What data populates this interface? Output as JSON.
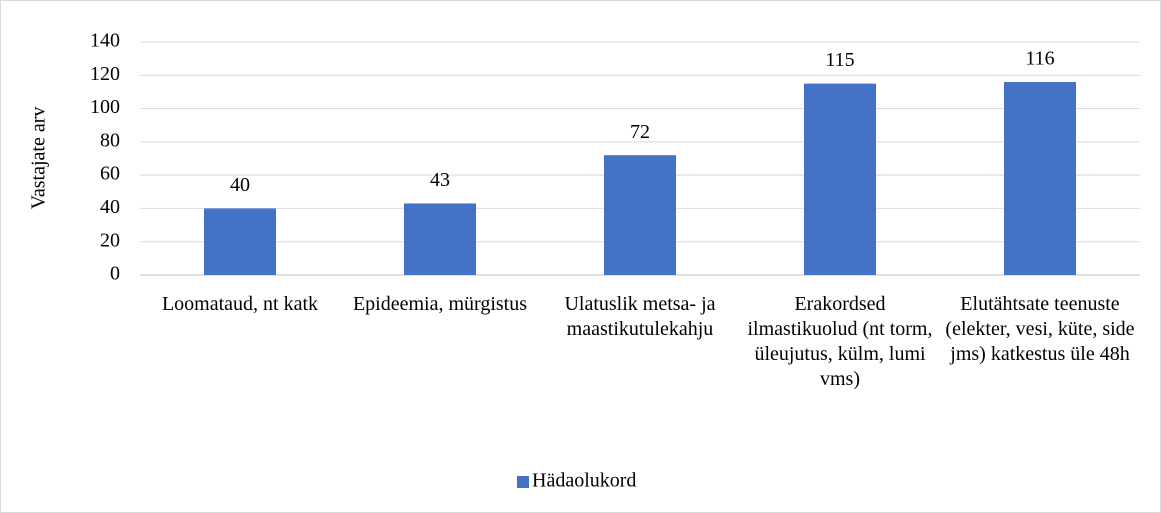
{
  "chart_data": {
    "type": "bar",
    "categories": [
      "Loomataud, nt katk",
      "Epideemia, mürgistus",
      "Ulatuslik metsa- ja maastikutulekahju",
      "Erakordsed ilmastikuolud (nt torm, üleujutus, külm, lumi vms)",
      "Elutähtsate teenuste (elekter, vesi, küte, side jms) katkestus üle 48h"
    ],
    "series": [
      {
        "name": "Hädaolukord",
        "color": "#4472c4",
        "values": [
          40,
          43,
          72,
          115,
          116
        ]
      }
    ],
    "ylabel": "Vastajate arv",
    "ylim": [
      0,
      140
    ],
    "yticks": [
      0,
      20,
      40,
      60,
      80,
      100,
      120,
      140
    ],
    "grid": true,
    "legend": "bottom"
  }
}
